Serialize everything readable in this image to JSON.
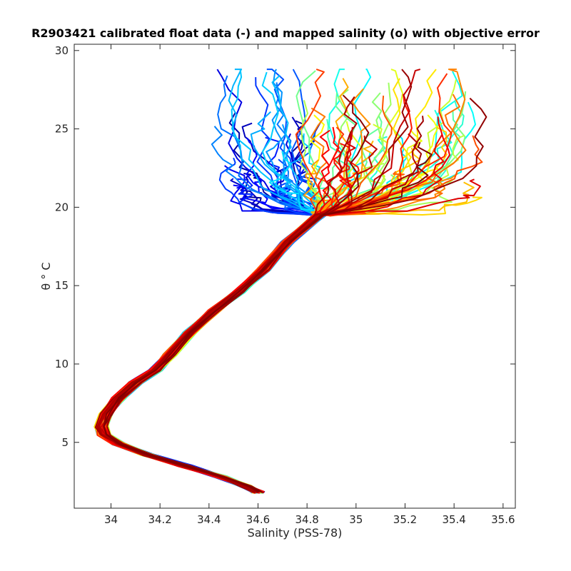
{
  "chart_data": {
    "type": "line",
    "title": "R2903421 calibrated float data (-) and mapped salinity (o) with objective error",
    "xlabel": "Salinity (PSS-78)",
    "ylabel": "θ ° C",
    "xlim": [
      33.85,
      35.65
    ],
    "ylim": [
      0.8,
      30.4
    ],
    "xticks": [
      34,
      34.2,
      34.4,
      34.6,
      34.8,
      35,
      35.2,
      35.4,
      35.6
    ],
    "yticks": [
      5,
      10,
      15,
      20,
      25,
      30
    ],
    "xtick_labels": [
      "34",
      "34.2",
      "34.4",
      "34.6",
      "34.8",
      "35",
      "35.2",
      "35.4",
      "35.6"
    ],
    "ytick_labels": [
      "5",
      "10",
      "15",
      "20",
      "25",
      "30"
    ],
    "grid": false,
    "colormap": "jet",
    "colors": [
      "#00008f",
      "#0000ff",
      "#0080ff",
      "#00ffff",
      "#80ff80",
      "#ffff00",
      "#ff8000",
      "#ff0000",
      "#800000"
    ],
    "profile_count": 120,
    "deep_profile": [
      [
        34.6,
        1.8
      ],
      [
        34.55,
        2.2
      ],
      [
        34.45,
        2.8
      ],
      [
        34.3,
        3.5
      ],
      [
        34.15,
        4.2
      ],
      [
        34.03,
        4.9
      ],
      [
        33.97,
        5.5
      ],
      [
        33.96,
        6.0
      ],
      [
        33.98,
        6.8
      ],
      [
        34.03,
        7.8
      ],
      [
        34.1,
        8.8
      ],
      [
        34.18,
        9.6
      ],
      [
        34.24,
        10.6
      ],
      [
        34.32,
        12.0
      ],
      [
        34.42,
        13.4
      ],
      [
        34.52,
        14.6
      ],
      [
        34.62,
        16.0
      ],
      [
        34.72,
        17.8
      ],
      [
        34.85,
        19.5
      ]
    ],
    "surface_range": {
      "theta": [
        19.5,
        28.8
      ],
      "salinity": [
        34.4,
        35.55
      ]
    }
  }
}
